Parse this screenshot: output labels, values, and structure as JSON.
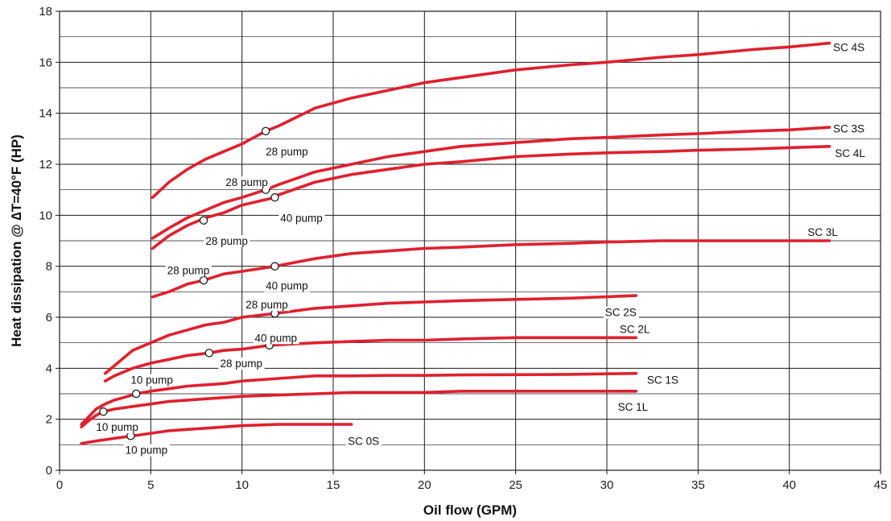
{
  "chart_data": {
    "type": "line",
    "xlabel": "Oil flow (GPM)",
    "ylabel": "Heat dissipation @ ∆T=40°F (HP)",
    "xlim": [
      0,
      45
    ],
    "ylim": [
      0,
      18
    ],
    "x_ticks": [
      0,
      5,
      10,
      15,
      20,
      25,
      30,
      35,
      40,
      45
    ],
    "y_ticks": [
      0,
      2,
      4,
      6,
      8,
      10,
      12,
      14,
      16,
      18
    ],
    "grid": true,
    "line_color": "#e0202e",
    "series": [
      {
        "name": "SC 4S",
        "x": [
          5.1,
          6,
          7,
          8,
          9,
          10,
          11.3,
          12,
          14,
          16,
          18,
          20,
          22,
          25,
          28,
          30,
          33,
          35,
          38,
          40,
          42.2
        ],
        "y": [
          10.7,
          11.3,
          11.8,
          12.2,
          12.5,
          12.8,
          13.3,
          13.5,
          14.2,
          14.6,
          14.9,
          15.2,
          15.4,
          15.7,
          15.9,
          16.0,
          16.2,
          16.3,
          16.5,
          16.6,
          16.75
        ]
      },
      {
        "name": "SC 3S",
        "x": [
          5.1,
          6,
          7,
          8,
          9,
          10,
          11.3,
          12,
          14,
          16,
          18,
          20,
          22,
          25,
          28,
          30,
          33,
          35,
          38,
          40,
          42.2
        ],
        "y": [
          9.1,
          9.5,
          9.9,
          10.2,
          10.5,
          10.7,
          11.0,
          11.2,
          11.7,
          12.0,
          12.3,
          12.5,
          12.7,
          12.85,
          13.0,
          13.05,
          13.15,
          13.2,
          13.3,
          13.35,
          13.45
        ]
      },
      {
        "name": "SC 4L",
        "x": [
          5.1,
          6,
          7,
          8,
          9,
          10,
          11.8,
          12,
          14,
          16,
          18,
          20,
          22,
          25,
          28,
          30,
          33,
          35,
          38,
          40,
          42.2
        ],
        "y": [
          8.7,
          9.2,
          9.6,
          9.9,
          10.1,
          10.4,
          10.7,
          10.8,
          11.3,
          11.6,
          11.8,
          12.0,
          12.1,
          12.3,
          12.4,
          12.45,
          12.5,
          12.55,
          12.6,
          12.65,
          12.7
        ]
      },
      {
        "name": "SC 3L",
        "x": [
          5.1,
          6,
          7,
          7.9,
          9,
          10,
          11.8,
          14,
          16,
          18,
          20,
          22,
          25,
          28,
          30,
          33,
          35,
          38,
          40,
          42.2
        ],
        "y": [
          6.8,
          7.0,
          7.3,
          7.45,
          7.7,
          7.8,
          8.0,
          8.3,
          8.5,
          8.6,
          8.7,
          8.75,
          8.85,
          8.9,
          8.95,
          9.0,
          9.0,
          9.0,
          9.0,
          9.0
        ]
      },
      {
        "name": "SC 2S",
        "x": [
          2.5,
          3,
          3.5,
          4,
          5,
          6,
          7,
          8,
          9,
          10,
          11.8,
          14,
          16,
          18,
          20,
          22,
          25,
          28,
          31.6
        ],
        "y": [
          3.8,
          4.1,
          4.4,
          4.7,
          5.0,
          5.3,
          5.5,
          5.7,
          5.8,
          6.0,
          6.15,
          6.35,
          6.45,
          6.55,
          6.6,
          6.65,
          6.7,
          6.75,
          6.85
        ]
      },
      {
        "name": "SC 2L",
        "x": [
          2.5,
          3,
          4,
          5,
          6,
          7,
          8.2,
          9,
          10,
          11.5,
          14,
          16,
          18,
          20,
          22,
          25,
          28,
          31.6
        ],
        "y": [
          3.5,
          3.7,
          4.0,
          4.2,
          4.35,
          4.5,
          4.6,
          4.7,
          4.75,
          4.9,
          5.0,
          5.05,
          5.1,
          5.1,
          5.15,
          5.2,
          5.2,
          5.2
        ]
      },
      {
        "name": "SC 1S",
        "x": [
          1.2,
          1.6,
          2,
          2.5,
          3,
          3.5,
          4.2,
          5,
          6,
          7,
          8,
          9,
          10,
          12,
          14,
          16,
          18,
          20,
          22,
          25,
          28,
          31.6
        ],
        "y": [
          1.8,
          2.1,
          2.4,
          2.6,
          2.75,
          2.85,
          3.0,
          3.1,
          3.2,
          3.3,
          3.35,
          3.4,
          3.5,
          3.6,
          3.7,
          3.7,
          3.72,
          3.72,
          3.74,
          3.75,
          3.76,
          3.8
        ]
      },
      {
        "name": "SC 1L",
        "x": [
          1.2,
          1.6,
          2,
          2.4,
          3,
          4,
          5,
          6,
          7,
          8,
          10,
          12,
          14,
          16,
          18,
          20,
          22,
          25,
          28,
          31.6
        ],
        "y": [
          1.7,
          1.95,
          2.15,
          2.3,
          2.4,
          2.5,
          2.6,
          2.7,
          2.75,
          2.8,
          2.9,
          2.95,
          3.0,
          3.05,
          3.05,
          3.05,
          3.1,
          3.1,
          3.1,
          3.1
        ]
      },
      {
        "name": "SC 0S",
        "x": [
          1.2,
          2,
          3,
          4,
          5,
          6,
          7,
          8,
          9,
          10,
          12,
          14,
          16
        ],
        "y": [
          1.05,
          1.15,
          1.25,
          1.35,
          1.45,
          1.55,
          1.6,
          1.65,
          1.7,
          1.75,
          1.8,
          1.8,
          1.8
        ]
      }
    ],
    "markers": [
      {
        "x": 11.3,
        "y": 13.3
      },
      {
        "x": 11.3,
        "y": 11.0
      },
      {
        "x": 11.8,
        "y": 10.7
      },
      {
        "x": 7.9,
        "y": 9.8
      },
      {
        "x": 7.9,
        "y": 7.45
      },
      {
        "x": 11.8,
        "y": 8.0
      },
      {
        "x": 11.8,
        "y": 6.15
      },
      {
        "x": 8.2,
        "y": 4.6
      },
      {
        "x": 11.5,
        "y": 4.9
      },
      {
        "x": 4.2,
        "y": 3.0
      },
      {
        "x": 2.4,
        "y": 2.3
      },
      {
        "x": 3.9,
        "y": 1.35
      }
    ],
    "annotations": [
      {
        "text": "28 pump",
        "x": 11.3,
        "y": 12.5,
        "anchor": "start"
      },
      {
        "text": "28 pump",
        "x": 9.1,
        "y": 11.3,
        "anchor": "start"
      },
      {
        "text": "40 pump",
        "x": 12.1,
        "y": 9.9,
        "anchor": "start"
      },
      {
        "text": "28 pump",
        "x": 8.0,
        "y": 9.0,
        "anchor": "start"
      },
      {
        "text": "28 pump",
        "x": 5.9,
        "y": 7.85,
        "anchor": "start"
      },
      {
        "text": "40 pump",
        "x": 11.3,
        "y": 7.25,
        "anchor": "start"
      },
      {
        "text": "28 pump",
        "x": 10.2,
        "y": 6.5,
        "anchor": "start"
      },
      {
        "text": "40 pump",
        "x": 10.7,
        "y": 5.2,
        "anchor": "start"
      },
      {
        "text": "28 pump",
        "x": 8.8,
        "y": 4.2,
        "anchor": "start"
      },
      {
        "text": "10 pump",
        "x": 3.9,
        "y": 3.55,
        "anchor": "start"
      },
      {
        "text": "10 pump",
        "x": 2.0,
        "y": 1.7,
        "anchor": "start"
      },
      {
        "text": "10 pump",
        "x": 3.6,
        "y": 0.8,
        "anchor": "start"
      }
    ],
    "series_labels": [
      {
        "text": "SC 4S",
        "x": 42.4,
        "y": 16.6
      },
      {
        "text": "SC 3S",
        "x": 42.4,
        "y": 13.4
      },
      {
        "text": "SC 4L",
        "x": 42.5,
        "y": 12.45
      },
      {
        "text": "SC 3L",
        "x": 41.0,
        "y": 9.35
      },
      {
        "text": "SC 2S",
        "x": 29.9,
        "y": 6.2
      },
      {
        "text": "SC 2L",
        "x": 30.7,
        "y": 5.55
      },
      {
        "text": "SC 1S",
        "x": 32.2,
        "y": 3.55
      },
      {
        "text": "SC 1L",
        "x": 30.6,
        "y": 2.5
      },
      {
        "text": "SC 0S",
        "x": 15.8,
        "y": 1.15
      }
    ]
  }
}
